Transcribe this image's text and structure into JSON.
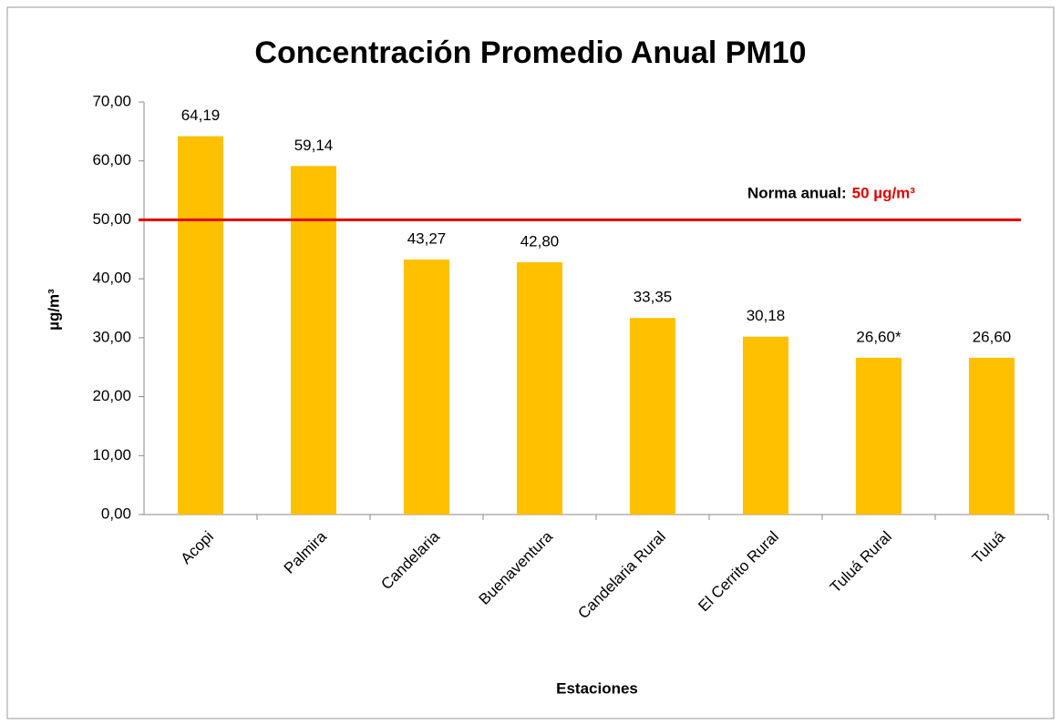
{
  "chart_data": {
    "type": "bar",
    "title": "Concentración Promedio Anual PM10",
    "x_label": "Estaciones",
    "y_label": "µg/m³",
    "categories": [
      "Acopi",
      "Palmira",
      "Candelaria",
      "Buenaventura",
      "Candelaria Rural",
      "El Cerrito Rural",
      "Tuluá Rural",
      "Tuluá"
    ],
    "values": [
      64.19,
      59.14,
      43.27,
      42.8,
      33.35,
      30.18,
      26.6,
      26.6
    ],
    "value_labels": [
      "64,19",
      "59,14",
      "43,27",
      "42,80",
      "33,35",
      "30,18",
      "26,60*",
      "26,60"
    ],
    "color": "#ffc000",
    "ylim": [
      0,
      70
    ],
    "yticks": [
      {
        "value": 0,
        "label": "0,00"
      },
      {
        "value": 10,
        "label": "10,00"
      },
      {
        "value": 20,
        "label": "20,00"
      },
      {
        "value": 30,
        "label": "30,00"
      },
      {
        "value": 40,
        "label": "40,00"
      },
      {
        "value": 50,
        "label": "50,00"
      },
      {
        "value": 60,
        "label": "60,00"
      },
      {
        "value": 70,
        "label": "70,00"
      }
    ],
    "grid": false,
    "reference_line": {
      "value": 50,
      "prefix": "Norma anual:",
      "label": "50 µg/m³",
      "color": "#e00000"
    }
  }
}
